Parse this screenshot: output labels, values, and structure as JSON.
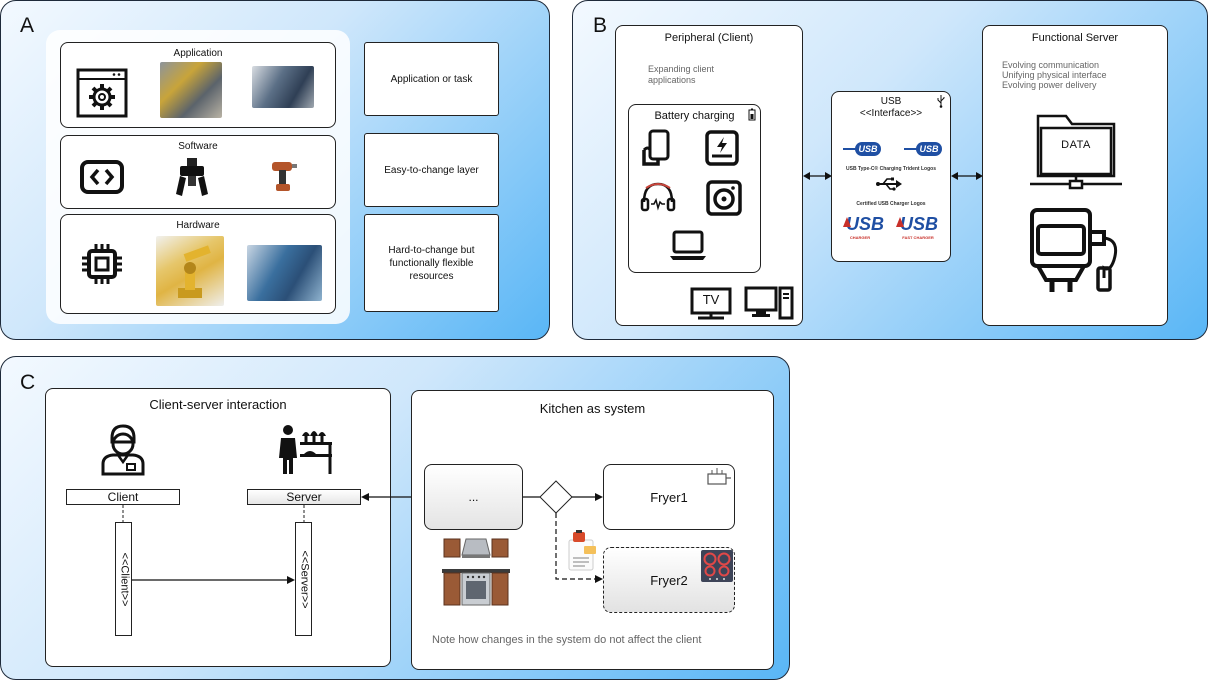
{
  "panel_a": {
    "letter": "A",
    "rows": [
      {
        "title": "Application",
        "desc": "Application or task"
      },
      {
        "title": "Software",
        "desc": "Easy-to-change layer"
      },
      {
        "title": "Hardware",
        "desc": "Hard-to-change but functionally flexible resources"
      }
    ]
  },
  "panel_b": {
    "letter": "B",
    "peripheral_title": "Peripheral (Client)",
    "peripheral_note": "Expanding client applications",
    "battery_title": "Battery charging",
    "tv_label": "TV",
    "usb_title": "USB",
    "usb_subtitle": "<<Interface>>",
    "usb_logo_text": "USB",
    "trident_caption": "USB Type-C® Charging Trident Logos",
    "charger_caption": "Certified USB Charger Logos",
    "charger_logo_text": "USB",
    "charger_tag_1": "CHARGER",
    "charger_tag_2": "FAST CHARGER",
    "server_title": "Functional Server",
    "server_notes": [
      "Evolving communication",
      "Unifying physical interface",
      "Evolving power delivery"
    ],
    "data_label": "DATA"
  },
  "panel_c": {
    "letter": "C",
    "interaction_title": "Client-server interaction",
    "client_label": "Client",
    "server_label": "Server",
    "client_lifeline": "<<Client>>",
    "server_lifeline": "<<Server>>",
    "kitchen_title": "Kitchen as system",
    "ellipsis": "...",
    "fryer1": "Fryer1",
    "fryer2": "Fryer2",
    "note": "Note how changes in the system do not affect the client"
  }
}
